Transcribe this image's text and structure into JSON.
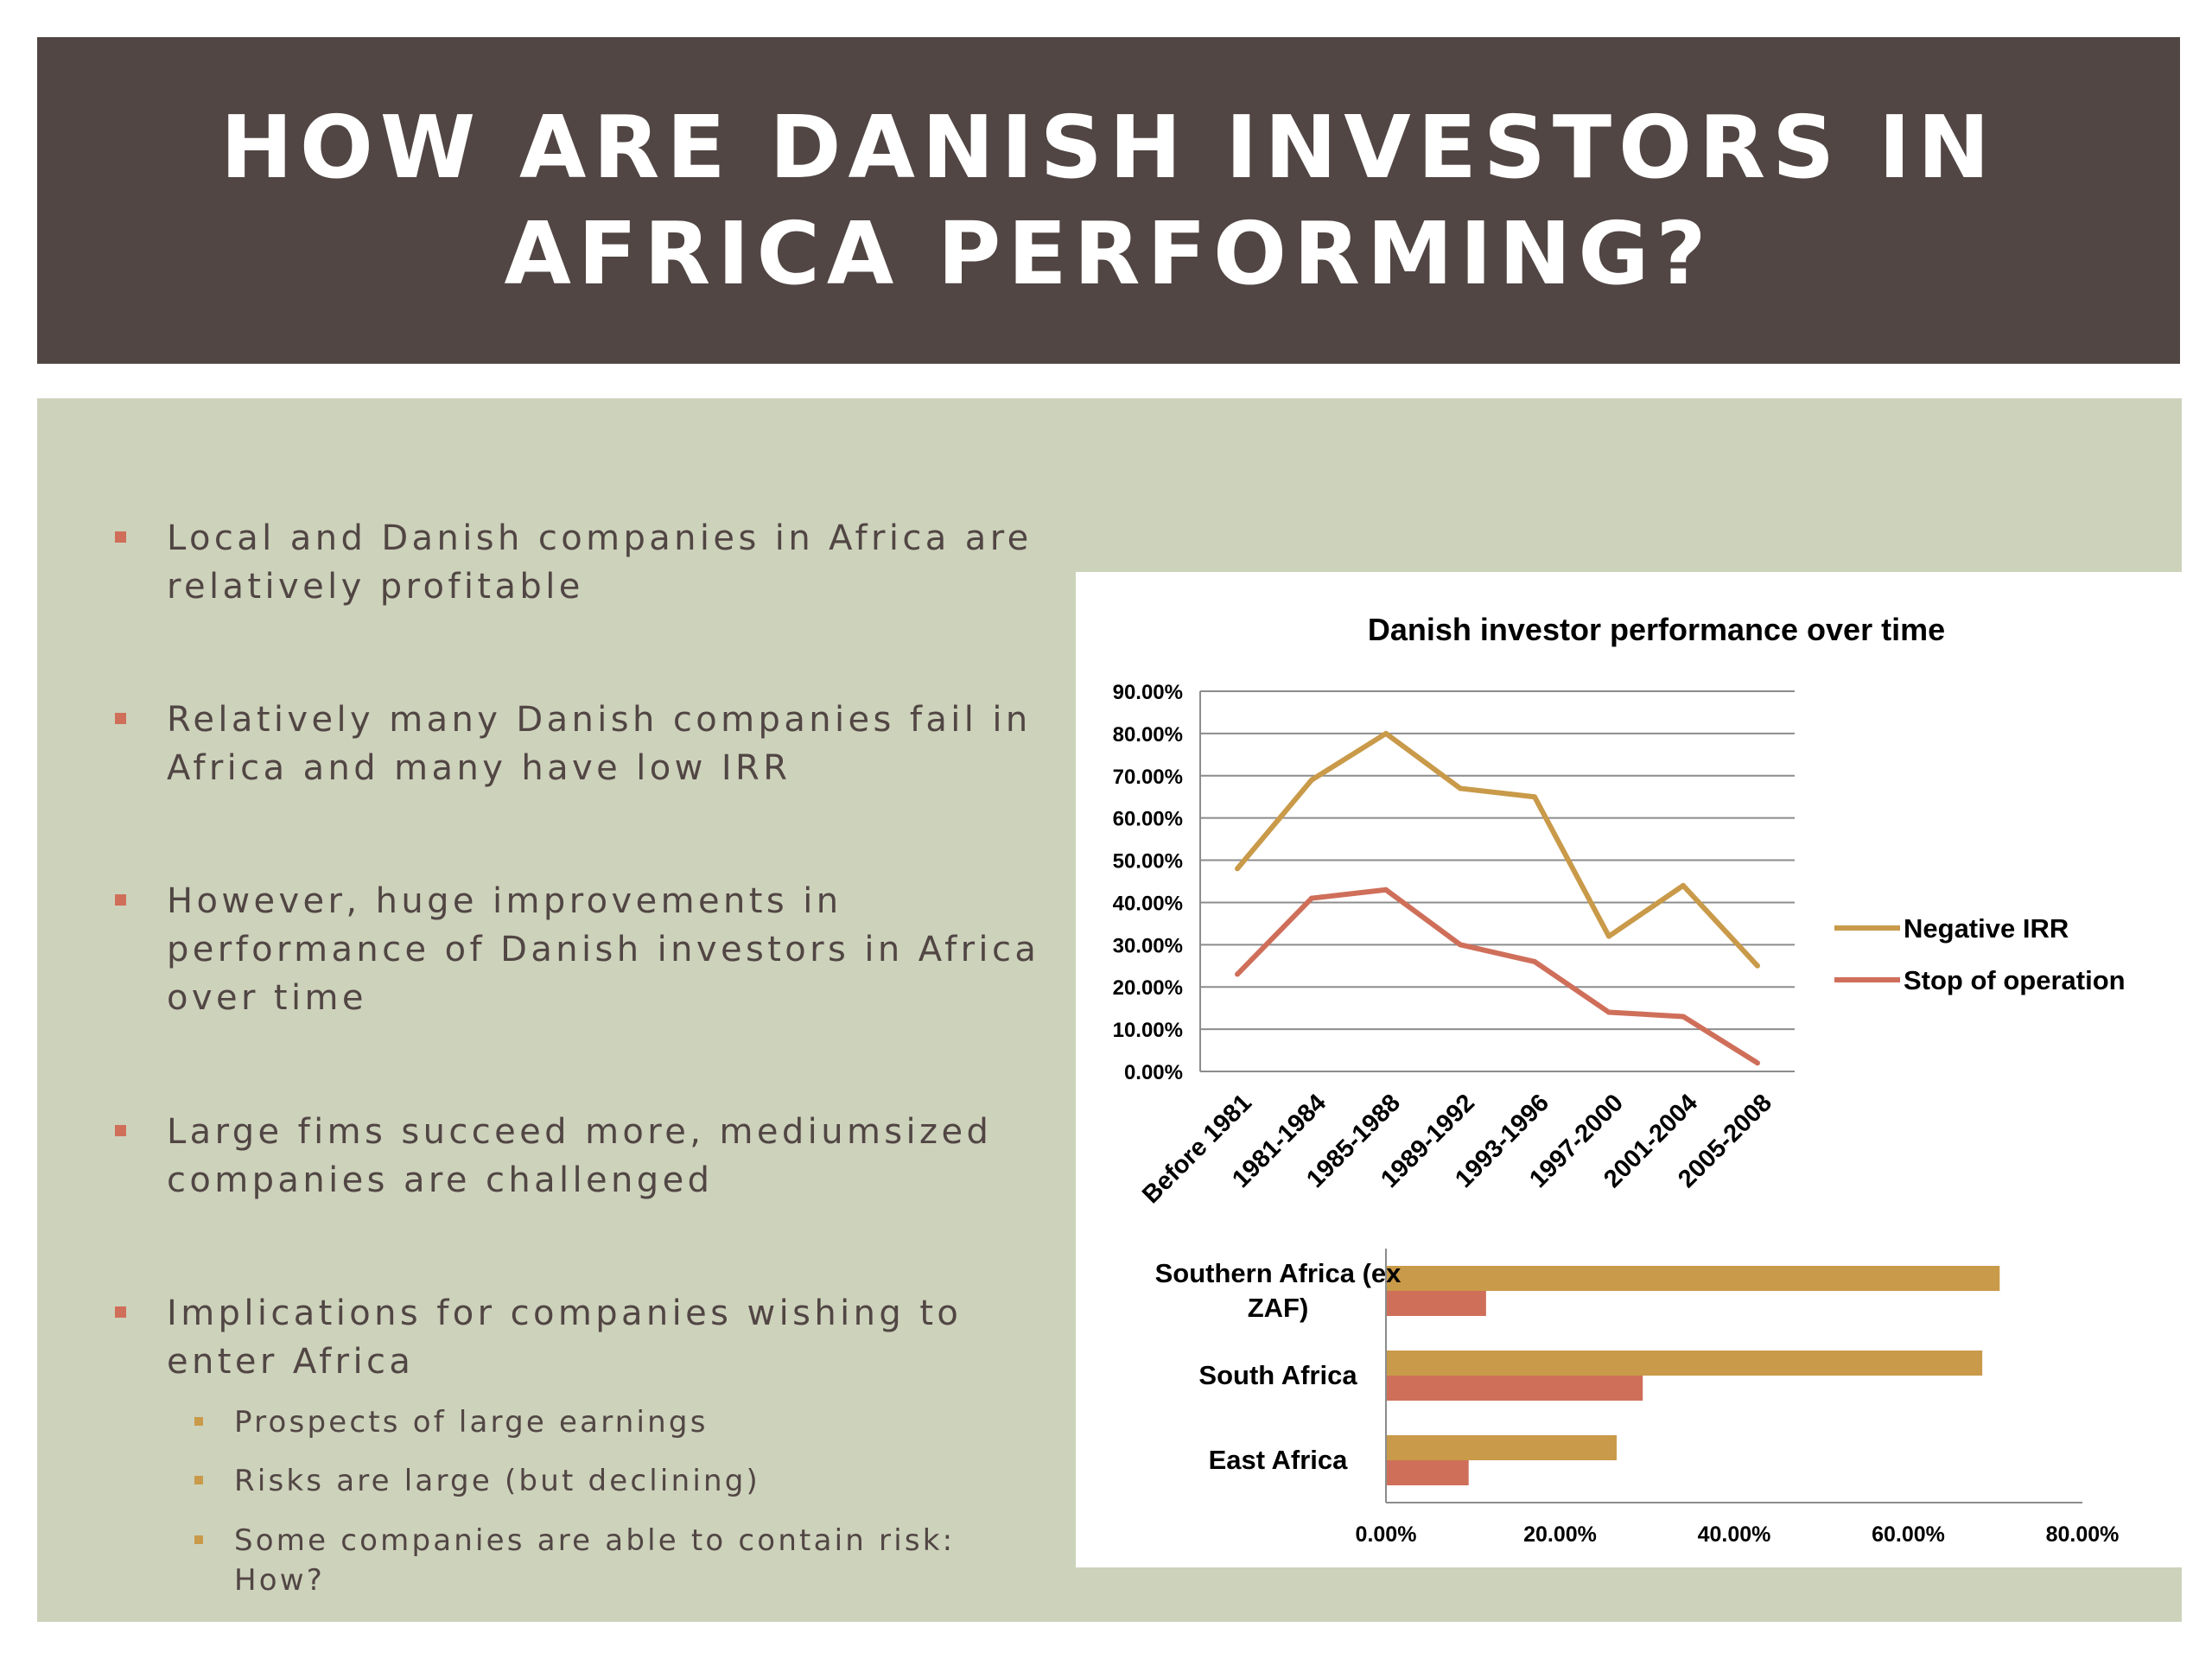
{
  "title": "HOW ARE DANISH INVESTORS IN AFRICA PERFORMING?",
  "bullets": [
    {
      "text": "Local and Danish companies in Africa are relatively profitable"
    },
    {
      "text": "Relatively many Danish companies fail in Africa and many have low IRR"
    },
    {
      "text": "However, huge improvements in performance of Danish investors in Africa over time"
    },
    {
      "text": "Large fims succeed more, mediumsized companies are challenged"
    },
    {
      "text": "Implications for companies wishing to enter Africa"
    }
  ],
  "sub_bullets": [
    {
      "text": "Prospects of large earnings"
    },
    {
      "text": "Risks are large (but declining)"
    },
    {
      "text": "Some companies are able to contain risk: How?"
    }
  ],
  "colors": {
    "stop": "#cf6f5a",
    "negative": "#c99a49",
    "title_bg": "#514644",
    "panel_bg": "#cdd2bb"
  },
  "chart_data": [
    {
      "type": "line",
      "title": "Danish investor performance over time",
      "categories": [
        "Before 1981",
        "1981-1984",
        "1985-1988",
        "1989-1992",
        "1993-1996",
        "1997-2000",
        "2001-2004",
        "2005-2008"
      ],
      "series": [
        {
          "name": "Stop of operation",
          "color": "#cf6f5a",
          "values": [
            23,
            41,
            43,
            30,
            26,
            14,
            13,
            2
          ]
        },
        {
          "name": "Negative IRR",
          "color": "#c99a49",
          "values": [
            48,
            69,
            80,
            67,
            65,
            32,
            44,
            25
          ]
        }
      ],
      "ylim": [
        0,
        90
      ],
      "yticks": [
        "0.00%",
        "10.00%",
        "20.00%",
        "30.00%",
        "40.00%",
        "50.00%",
        "60.00%",
        "70.00%",
        "80.00%",
        "90.00%"
      ],
      "grid": true,
      "legend": "right"
    },
    {
      "type": "bar",
      "orientation": "horizontal",
      "categories": [
        "Southern Africa (ex ZAF)",
        "South Africa",
        "East Africa"
      ],
      "category_lines": [
        [
          "Southern Africa (ex",
          "ZAF)"
        ],
        [
          "South Africa"
        ],
        [
          "East Africa"
        ]
      ],
      "series": [
        {
          "name": "Stop of operation",
          "color": "#cf6f5a",
          "values": [
            11.5,
            29.5,
            9.5
          ]
        },
        {
          "name": "Negative IRR",
          "color": "#c99a49",
          "values": [
            70.5,
            68.5,
            26.5
          ]
        }
      ],
      "xlim": [
        0,
        80
      ],
      "xticks": [
        "0.00%",
        "20.00%",
        "40.00%",
        "60.00%",
        "80.00%"
      ]
    }
  ]
}
